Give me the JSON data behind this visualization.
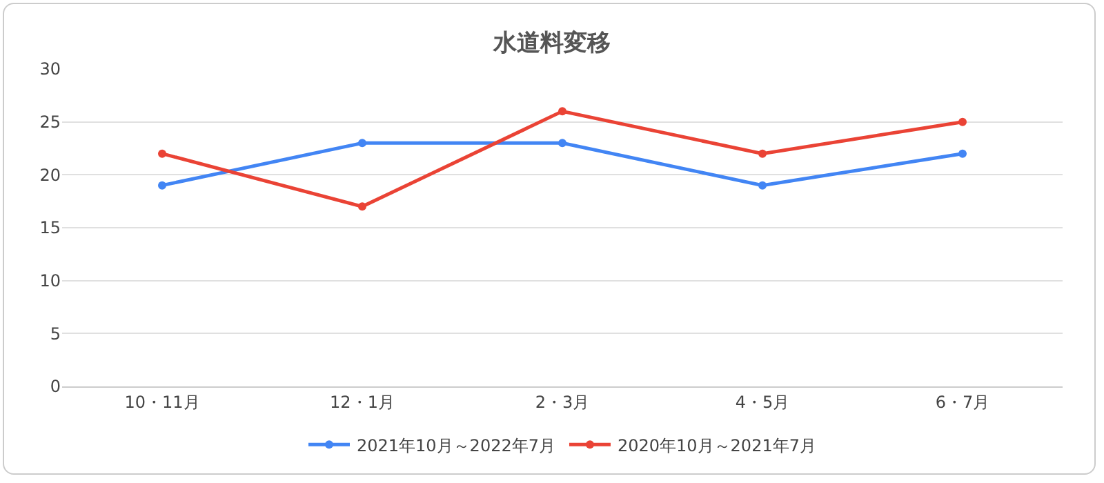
{
  "chart_data": {
    "type": "line",
    "title": "水道料変移",
    "categories": [
      "10・11月",
      "12・1月",
      "2・3月",
      "4・5月",
      "6・7月"
    ],
    "series": [
      {
        "name": "2021年10月～2022年7月",
        "color": "#4285f4",
        "values": [
          19,
          23,
          23,
          19,
          22
        ]
      },
      {
        "name": "2020年10月～2021年7月",
        "color": "#ea4335",
        "values": [
          22,
          17,
          26,
          22,
          25
        ]
      }
    ],
    "ylim": [
      0,
      30
    ],
    "yticks": [
      0,
      5,
      10,
      15,
      20,
      25,
      30
    ],
    "grid": "y",
    "legend": "bottom",
    "marker": "circle",
    "line_style": "solid"
  }
}
